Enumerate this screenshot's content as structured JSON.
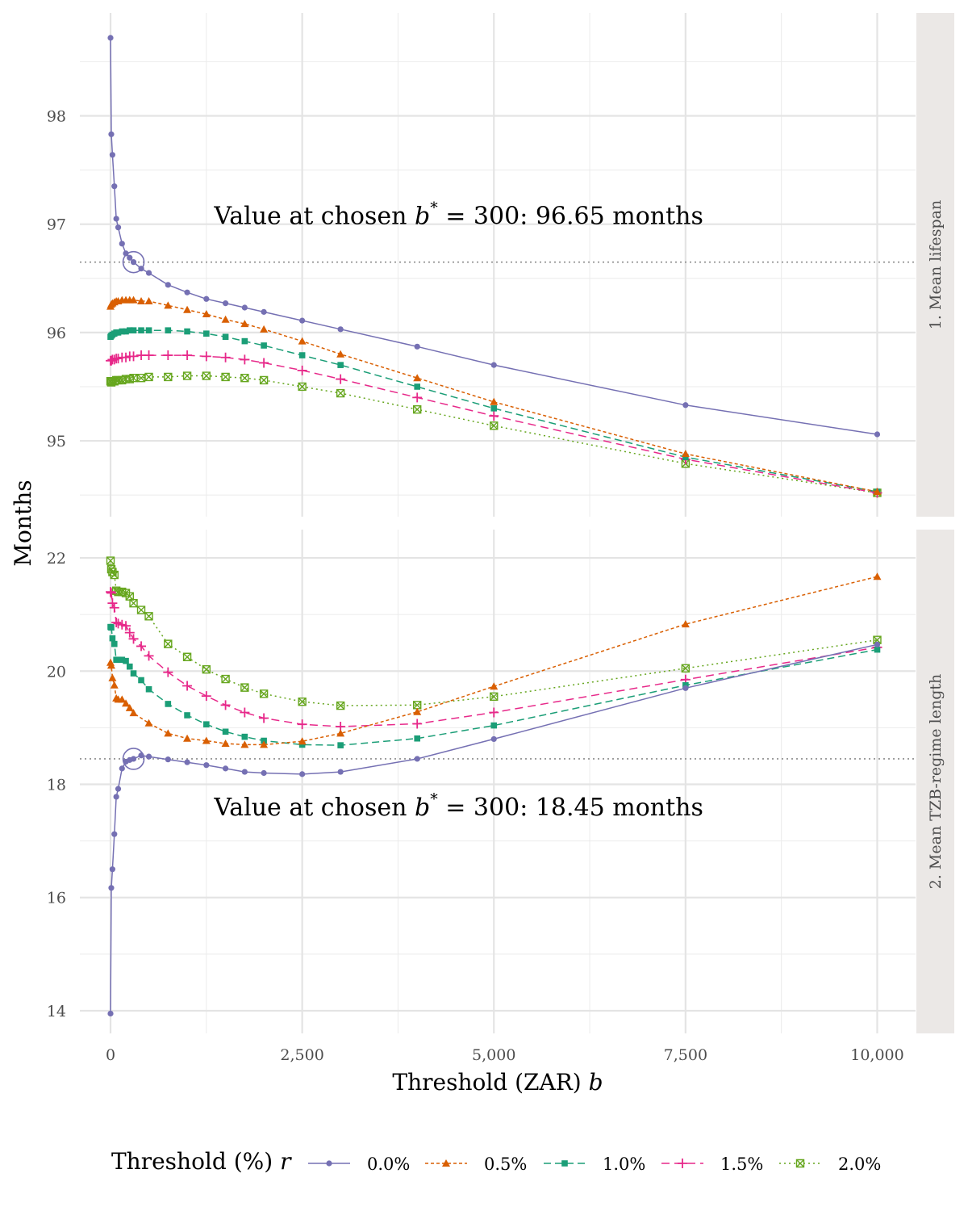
{
  "chart_data": {
    "type": "line",
    "xlabel": "Threshold (ZAR)",
    "xlabel_var": "b",
    "ylabel": "Months",
    "x_ticks": [
      0,
      2500,
      5000,
      7500,
      10000
    ],
    "x_tick_labels": [
      "0",
      "2,500",
      "5,000",
      "7,500",
      "10,000"
    ],
    "xlim": [
      -400,
      10500
    ],
    "grid": true,
    "legend_position": "bottom",
    "legend": {
      "title": "Threshold (%)",
      "title_var": "r",
      "entries": [
        "0.0%",
        "0.5%",
        "1.0%",
        "1.5%",
        "2.0%"
      ]
    },
    "series_styles": [
      {
        "color": "#7570b3",
        "dash": "",
        "marker": "circle"
      },
      {
        "color": "#d95f02",
        "dash": "4,3",
        "marker": "triangle"
      },
      {
        "color": "#1b9e77",
        "dash": "9,5",
        "marker": "square"
      },
      {
        "color": "#e7298a",
        "dash": "10,6",
        "marker": "plus"
      },
      {
        "color": "#66a61e",
        "dash": "2,4",
        "marker": "boxcross"
      }
    ],
    "panels": [
      {
        "strip": "1. Mean lifespan",
        "ylim": [
          94.3,
          98.95
        ],
        "y_ticks": [
          95,
          96,
          97,
          98
        ],
        "y_tick_labels": [
          "95",
          "96",
          "97",
          "98"
        ],
        "reference_y": 96.65,
        "highlight": {
          "x": 300,
          "y": 96.65
        },
        "annotation": {
          "prefix": "Value at chosen ",
          "var": "b",
          "sup": "*",
          "suffix": " = 300:  96.65 months",
          "x": 1350,
          "y": 97.0
        },
        "series": [
          {
            "name": "0.0%",
            "x": [
              0,
              10,
              25,
              50,
              75,
              100,
              150,
              200,
              250,
              300,
              400,
              500,
              750,
              1000,
              1250,
              1500,
              1750,
              2000,
              2500,
              3000,
              4000,
              5000,
              7500,
              10000
            ],
            "y": [
              98.72,
              97.83,
              97.64,
              97.35,
              97.05,
              96.97,
              96.82,
              96.73,
              96.69,
              96.65,
              96.59,
              96.55,
              96.44,
              96.37,
              96.31,
              96.27,
              96.23,
              96.19,
              96.11,
              96.03,
              95.87,
              95.7,
              95.33,
              95.06
            ]
          },
          {
            "name": "0.5%",
            "x": [
              0,
              10,
              25,
              50,
              75,
              100,
              150,
              200,
              250,
              300,
              400,
              500,
              750,
              1000,
              1250,
              1500,
              1750,
              2000,
              2500,
              3000,
              4000,
              5000,
              7500,
              10000
            ],
            "y": [
              96.24,
              96.26,
              96.27,
              96.28,
              96.29,
              96.29,
              96.3,
              96.3,
              96.3,
              96.3,
              96.29,
              96.29,
              96.25,
              96.21,
              96.17,
              96.12,
              96.08,
              96.03,
              95.92,
              95.8,
              95.58,
              95.36,
              94.88,
              94.53
            ]
          },
          {
            "name": "1.0%",
            "x": [
              0,
              10,
              25,
              50,
              75,
              100,
              150,
              200,
              250,
              300,
              400,
              500,
              750,
              1000,
              1250,
              1500,
              1750,
              2000,
              2500,
              3000,
              4000,
              5000,
              7500,
              10000
            ],
            "y": [
              95.96,
              95.97,
              95.98,
              95.99,
              96.0,
              96.0,
              96.01,
              96.01,
              96.02,
              96.02,
              96.02,
              96.02,
              96.02,
              96.01,
              95.99,
              95.96,
              95.92,
              95.88,
              95.79,
              95.7,
              95.5,
              95.3,
              94.85,
              94.53
            ]
          },
          {
            "name": "1.5%",
            "x": [
              0,
              10,
              25,
              50,
              75,
              100,
              150,
              200,
              250,
              300,
              400,
              500,
              750,
              1000,
              1250,
              1500,
              1750,
              2000,
              2500,
              3000,
              4000,
              5000,
              7500,
              10000
            ],
            "y": [
              95.74,
              95.74,
              95.75,
              95.75,
              95.76,
              95.76,
              95.77,
              95.77,
              95.78,
              95.78,
              95.79,
              95.79,
              95.79,
              95.79,
              95.78,
              95.77,
              95.75,
              95.72,
              95.65,
              95.57,
              95.4,
              95.23,
              94.83,
              94.52
            ]
          },
          {
            "name": "2.0%",
            "x": [
              0,
              10,
              25,
              50,
              75,
              100,
              150,
              200,
              250,
              300,
              400,
              500,
              750,
              1000,
              1250,
              1500,
              1750,
              2000,
              2500,
              3000,
              4000,
              5000,
              7500,
              10000
            ],
            "y": [
              95.55,
              95.54,
              95.55,
              95.55,
              95.56,
              95.56,
              95.56,
              95.57,
              95.57,
              95.58,
              95.58,
              95.59,
              95.59,
              95.6,
              95.6,
              95.59,
              95.58,
              95.56,
              95.5,
              95.44,
              95.29,
              95.14,
              94.79,
              94.52
            ]
          }
        ]
      },
      {
        "strip": "2. Mean TZB-regime length",
        "ylim": [
          13.6,
          22.5
        ],
        "y_ticks": [
          14,
          16,
          18,
          20,
          22
        ],
        "y_tick_labels": [
          "14",
          "16",
          "18",
          "20",
          "22"
        ],
        "reference_y": 18.45,
        "highlight": {
          "x": 300,
          "y": 18.45
        },
        "annotation": {
          "prefix": "Value at chosen ",
          "var": "b",
          "sup": "*",
          "suffix": " = 300:  18.45 months",
          "x": 1350,
          "y": 17.45
        },
        "series": [
          {
            "name": "0.0%",
            "x": [
              0,
              10,
              25,
              50,
              75,
              100,
              150,
              200,
              250,
              300,
              400,
              500,
              750,
              1000,
              1250,
              1500,
              1750,
              2000,
              2500,
              3000,
              4000,
              5000,
              7500,
              10000
            ],
            "y": [
              13.95,
              16.17,
              16.5,
              17.12,
              17.78,
              17.92,
              18.28,
              18.4,
              18.43,
              18.45,
              18.51,
              18.49,
              18.44,
              18.39,
              18.34,
              18.28,
              18.22,
              18.2,
              18.18,
              18.22,
              18.45,
              18.8,
              19.7,
              20.47
            ]
          },
          {
            "name": "0.5%",
            "x": [
              0,
              10,
              25,
              50,
              75,
              100,
              150,
              200,
              250,
              300,
              500,
              750,
              1000,
              1250,
              1500,
              1750,
              2000,
              2500,
              3000,
              4000,
              5000,
              7500,
              10000
            ],
            "y": [
              20.15,
              20.1,
              19.88,
              19.75,
              19.52,
              19.5,
              19.5,
              19.43,
              19.35,
              19.26,
              19.08,
              18.9,
              18.81,
              18.77,
              18.72,
              18.7,
              18.7,
              18.76,
              18.9,
              19.28,
              19.73,
              20.83,
              21.67
            ]
          },
          {
            "name": "1.0%",
            "x": [
              0,
              10,
              25,
              50,
              75,
              100,
              150,
              200,
              250,
              300,
              400,
              500,
              750,
              1000,
              1250,
              1500,
              1750,
              2000,
              2500,
              3000,
              4000,
              5000,
              7500,
              10000
            ],
            "y": [
              20.78,
              20.77,
              20.58,
              20.48,
              20.2,
              20.2,
              20.2,
              20.18,
              20.08,
              19.96,
              19.84,
              19.68,
              19.42,
              19.22,
              19.06,
              18.93,
              18.84,
              18.77,
              18.7,
              18.69,
              18.81,
              19.04,
              19.75,
              20.38
            ]
          },
          {
            "name": "1.5%",
            "x": [
              0,
              10,
              25,
              50,
              75,
              100,
              150,
              200,
              250,
              300,
              400,
              500,
              750,
              1000,
              1250,
              1500,
              1750,
              2000,
              2500,
              3000,
              4000,
              5000,
              7500,
              10000
            ],
            "y": [
              21.4,
              21.38,
              21.2,
              21.12,
              20.86,
              20.84,
              20.82,
              20.8,
              20.68,
              20.57,
              20.44,
              20.27,
              19.98,
              19.74,
              19.56,
              19.4,
              19.27,
              19.17,
              19.06,
              19.02,
              19.07,
              19.27,
              19.85,
              20.42
            ]
          },
          {
            "name": "2.0%",
            "x": [
              0,
              10,
              25,
              50,
              75,
              100,
              150,
              200,
              250,
              300,
              400,
              500,
              750,
              1000,
              1250,
              1500,
              1750,
              2000,
              2500,
              3000,
              4000,
              5000,
              7500,
              10000
            ],
            "y": [
              21.95,
              21.8,
              21.75,
              21.7,
              21.42,
              21.4,
              21.4,
              21.38,
              21.32,
              21.2,
              21.08,
              20.97,
              20.48,
              20.25,
              20.03,
              19.86,
              19.71,
              19.6,
              19.46,
              19.39,
              19.4,
              19.55,
              20.05,
              20.55
            ]
          }
        ]
      }
    ]
  }
}
